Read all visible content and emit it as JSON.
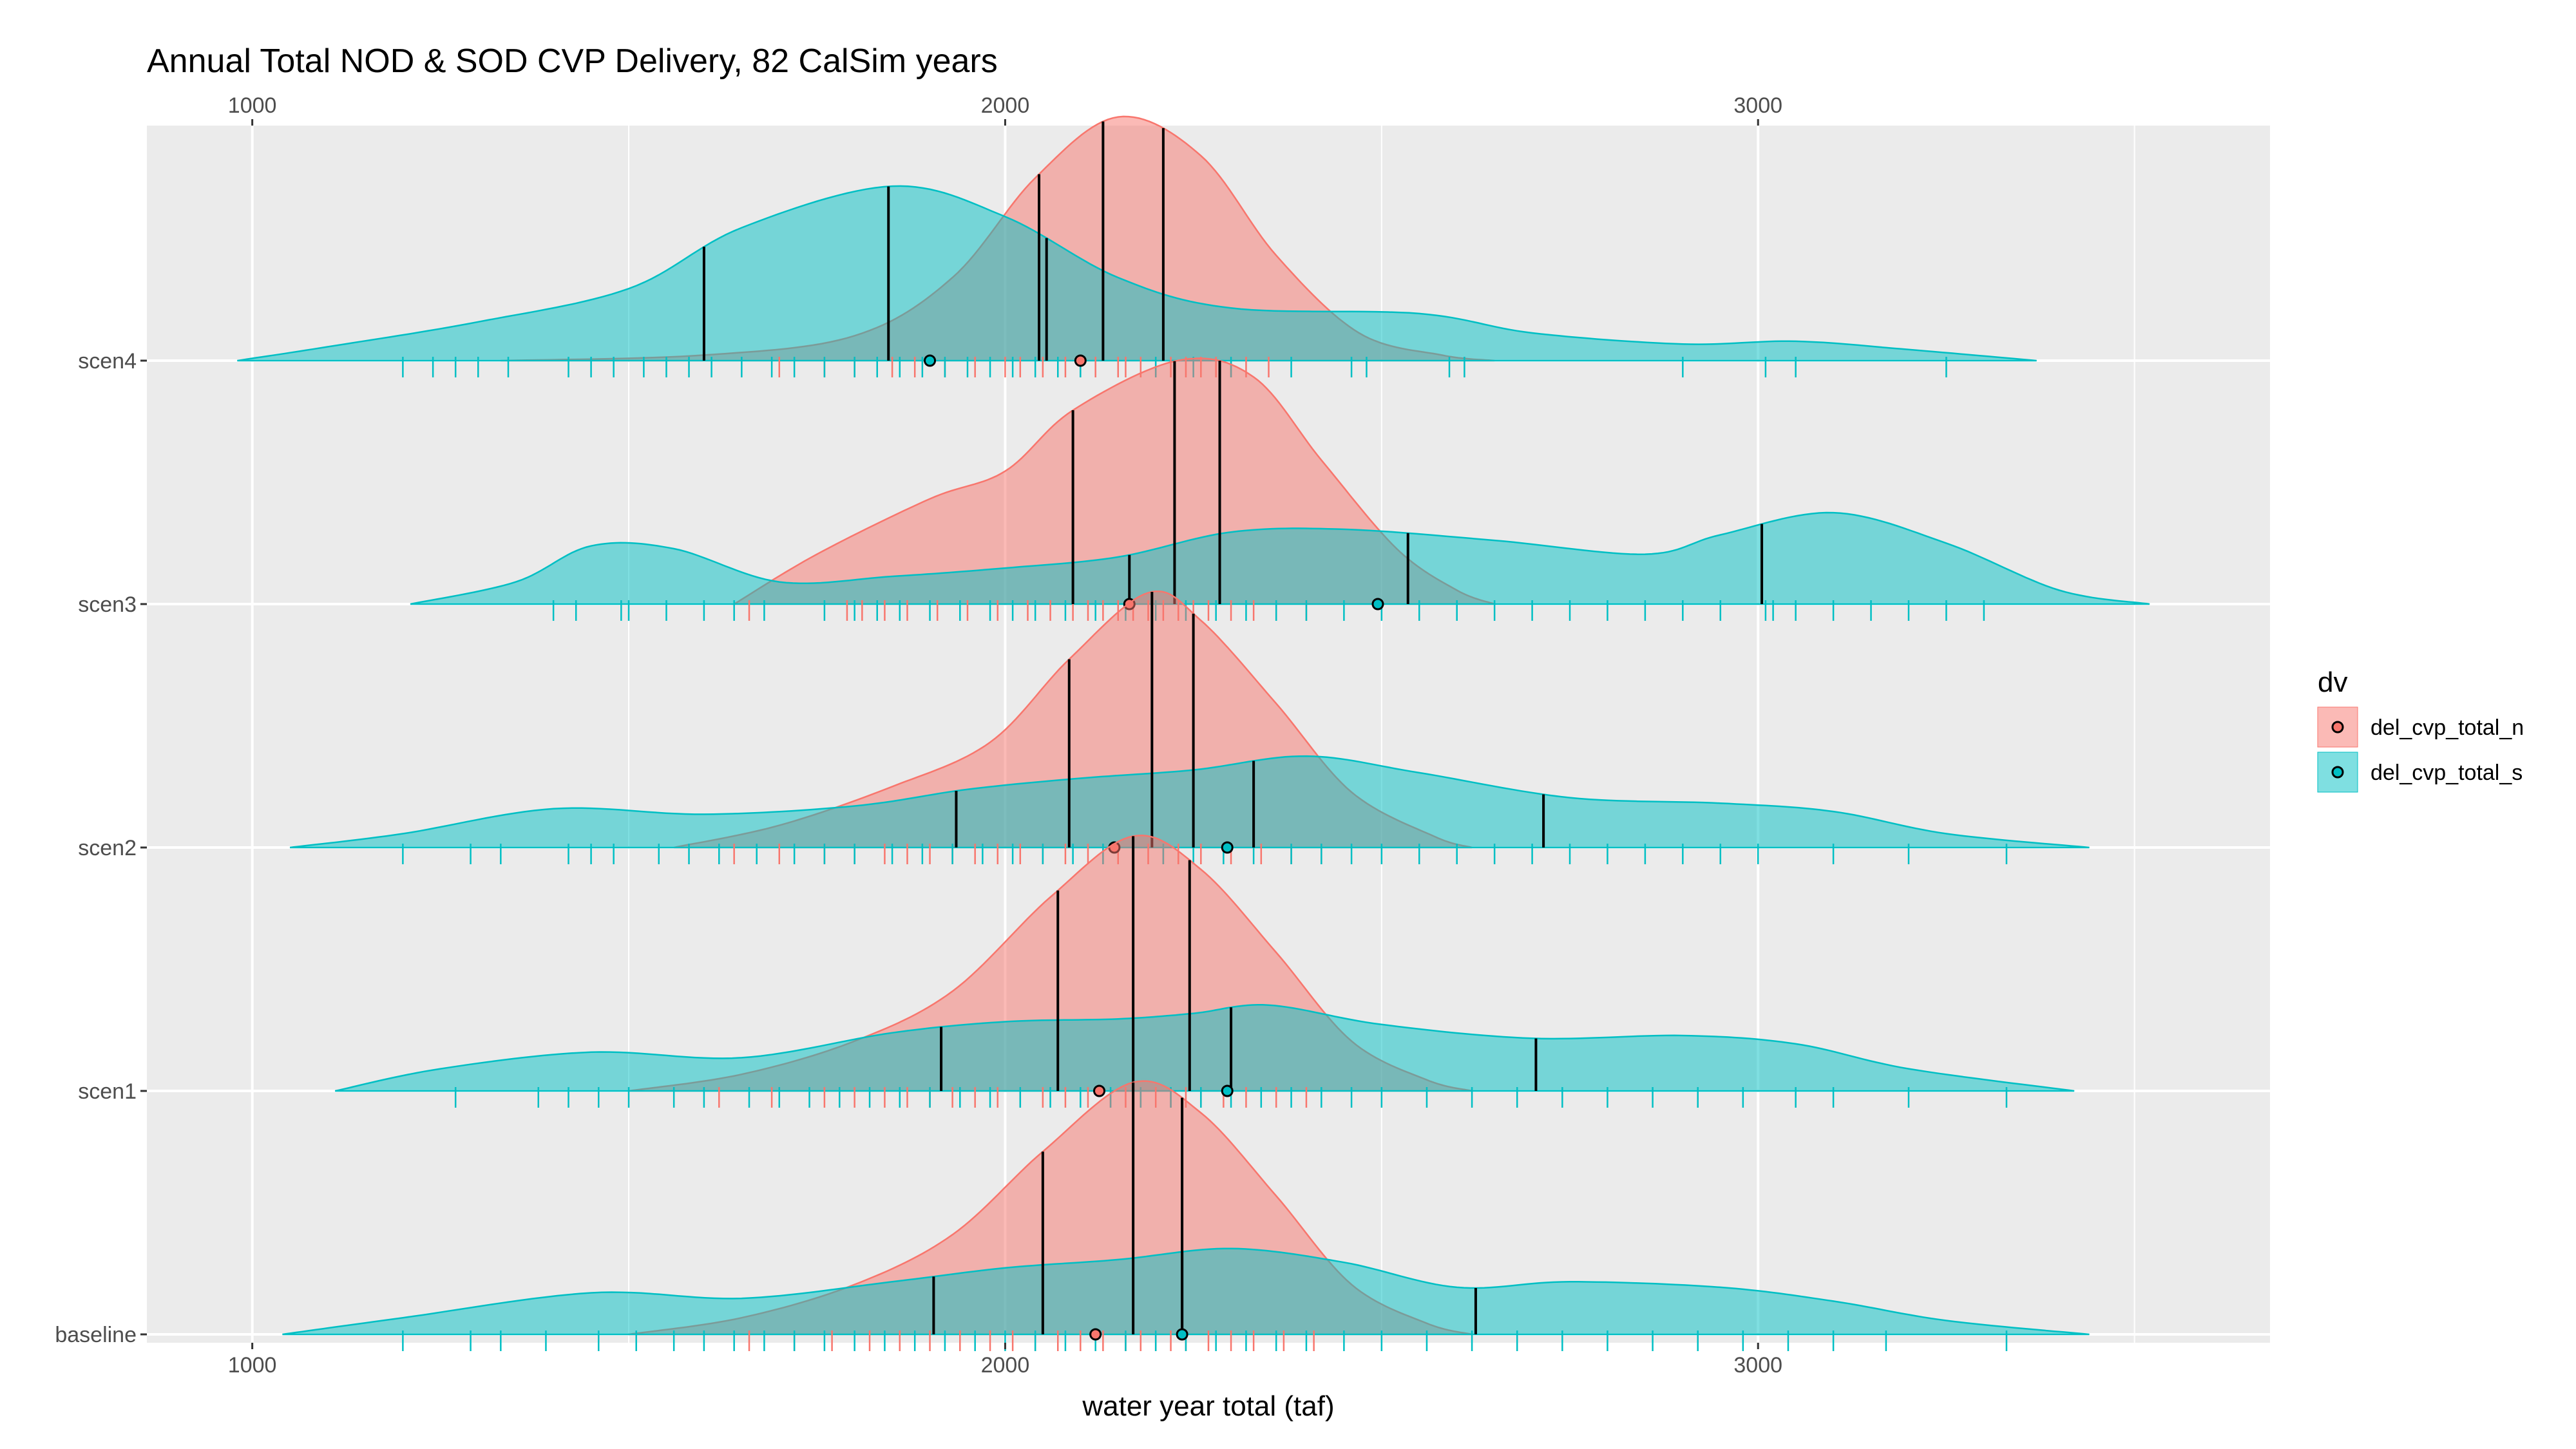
{
  "chart_data": {
    "type": "ridgeline-density",
    "title": "Annual Total NOD & SOD CVP Delivery, 82 CalSim years",
    "xlabel": "water year total (taf)",
    "xlim": [
      860,
      3680
    ],
    "x_ticks": [
      1000,
      2000,
      3000
    ],
    "x_tick_labels": [
      "1000",
      "2000",
      "3000"
    ],
    "categories": [
      "scen4",
      "scen3",
      "scen2",
      "scen1",
      "baseline"
    ],
    "legend": {
      "title": "dv",
      "position": "right"
    },
    "series": [
      {
        "name": "del_cvp_total_n",
        "color": "#F8766D",
        "fill": "#F8766D"
      },
      {
        "name": "del_cvp_total_s",
        "color": "#00BFC4",
        "fill": "#00BFC4"
      }
    ],
    "ridges": [
      {
        "category": "scen4",
        "n": {
          "peak": [
            2150,
            0.88
          ],
          "ctrl": [
            [
              1330,
              0
            ],
            [
              1600,
              0.02
            ],
            [
              1800,
              0.09
            ],
            [
              1930,
              0.3
            ],
            [
              2040,
              0.66
            ],
            [
              2150,
              0.88
            ],
            [
              2260,
              0.74
            ],
            [
              2360,
              0.38
            ],
            [
              2470,
              0.1
            ],
            [
              2580,
              0.02
            ],
            [
              2650,
              0
            ]
          ],
          "quantiles": [
            2045,
            2130,
            2210
          ],
          "mean": 2100,
          "rug": [
            1700,
            1760,
            1800,
            1850,
            1880,
            1920,
            1960,
            2000,
            2020,
            2050,
            2080,
            2100,
            2120,
            2150,
            2160,
            2180,
            2200,
            2220,
            2240,
            2260,
            2280,
            2300,
            2320,
            2350
          ]
        },
        "s": {
          "ctrl": [
            [
              980,
              0
            ],
            [
              1100,
              0.05
            ],
            [
              1300,
              0.14
            ],
            [
              1500,
              0.26
            ],
            [
              1650,
              0.48
            ],
            [
              1850,
              0.63
            ],
            [
              2000,
              0.52
            ],
            [
              2150,
              0.3
            ],
            [
              2300,
              0.19
            ],
            [
              2550,
              0.17
            ],
            [
              2700,
              0.1
            ],
            [
              2900,
              0.06
            ],
            [
              3050,
              0.07
            ],
            [
              3200,
              0.04
            ],
            [
              3370,
              0
            ]
          ],
          "quantiles": [
            1600,
            1845,
            2055
          ],
          "mean": 1900,
          "rug": [
            1200,
            1240,
            1270,
            1300,
            1340,
            1420,
            1450,
            1480,
            1520,
            1550,
            1580,
            1610,
            1650,
            1690,
            1720,
            1760,
            1800,
            1830,
            1860,
            1890,
            1920,
            1950,
            1980,
            2010,
            2040,
            2070,
            2100,
            2200,
            2250,
            2300,
            2380,
            2460,
            2480,
            2590,
            2610,
            2900,
            3010,
            3050,
            3250
          ]
        }
      },
      {
        "category": "scen3",
        "n": {
          "peak": [
            2230,
            0.88
          ],
          "ctrl": [
            [
              1640,
              0
            ],
            [
              1750,
              0.18
            ],
            [
              1900,
              0.38
            ],
            [
              2000,
              0.48
            ],
            [
              2090,
              0.7
            ],
            [
              2230,
              0.88
            ],
            [
              2330,
              0.82
            ],
            [
              2420,
              0.52
            ],
            [
              2520,
              0.2
            ],
            [
              2600,
              0.05
            ],
            [
              2650,
              0
            ]
          ],
          "quantiles": [
            2090,
            2225,
            2285
          ],
          "mean": 2165,
          "rug": [
            1660,
            1790,
            1810,
            1840,
            1870,
            1910,
            1950,
            1990,
            2030,
            2060,
            2090,
            2110,
            2130,
            2150,
            2170,
            2190,
            2210,
            2230,
            2250,
            2270,
            2300,
            2330,
            2360,
            2400
          ]
        },
        "s": {
          "ctrl": [
            [
              1210,
              0
            ],
            [
              1350,
              0.08
            ],
            [
              1450,
              0.21
            ],
            [
              1560,
              0.2
            ],
            [
              1700,
              0.08
            ],
            [
              1850,
              0.1
            ],
            [
              2000,
              0.13
            ],
            [
              2150,
              0.17
            ],
            [
              2300,
              0.26
            ],
            [
              2450,
              0.27
            ],
            [
              2650,
              0.23
            ],
            [
              2850,
              0.18
            ],
            [
              2950,
              0.25
            ],
            [
              3100,
              0.33
            ],
            [
              3250,
              0.22
            ],
            [
              3400,
              0.05
            ],
            [
              3520,
              0
            ]
          ],
          "quantiles": [
            2165,
            2535,
            3005
          ],
          "mean": 2495,
          "rug": [
            1400,
            1430,
            1490,
            1500,
            1550,
            1600,
            1640,
            1680,
            1760,
            1800,
            1830,
            1860,
            1900,
            1940,
            1980,
            2010,
            2040,
            2080,
            2120,
            2160,
            2200,
            2240,
            2280,
            2320,
            2360,
            2400,
            2450,
            2500,
            2550,
            2600,
            2650,
            2700,
            2750,
            2800,
            2850,
            2900,
            2950,
            3010,
            3020,
            3050,
            3100,
            3150,
            3200,
            3250,
            3300
          ]
        }
      },
      {
        "category": "scen2",
        "n": {
          "peak": [
            2190,
            0.92
          ],
          "ctrl": [
            [
              1560,
              0
            ],
            [
              1700,
              0.08
            ],
            [
              1850,
              0.22
            ],
            [
              1980,
              0.38
            ],
            [
              2085,
              0.68
            ],
            [
              2190,
              0.92
            ],
            [
              2260,
              0.82
            ],
            [
              2360,
              0.52
            ],
            [
              2460,
              0.2
            ],
            [
              2570,
              0.04
            ],
            [
              2620,
              0
            ]
          ],
          "quantiles": [
            2085,
            2195,
            2250
          ],
          "mean": 2145,
          "rug": [
            1640,
            1700,
            1760,
            1800,
            1840,
            1870,
            1900,
            1930,
            1960,
            1990,
            2020,
            2050,
            2080,
            2110,
            2130,
            2150,
            2170,
            2190,
            2210,
            2230,
            2260,
            2300,
            2340,
            2380,
            2420
          ]
        },
        "s": {
          "ctrl": [
            [
              1050,
              0
            ],
            [
              1200,
              0.05
            ],
            [
              1400,
              0.14
            ],
            [
              1600,
              0.12
            ],
            [
              1800,
              0.15
            ],
            [
              1950,
              0.21
            ],
            [
              2100,
              0.25
            ],
            [
              2250,
              0.28
            ],
            [
              2400,
              0.33
            ],
            [
              2550,
              0.27
            ],
            [
              2750,
              0.18
            ],
            [
              2950,
              0.16
            ],
            [
              3100,
              0.13
            ],
            [
              3250,
              0.05
            ],
            [
              3440,
              0
            ]
          ],
          "quantiles": [
            1935,
            2330,
            2715
          ],
          "mean": 2295,
          "rug": [
            1200,
            1290,
            1330,
            1420,
            1450,
            1480,
            1540,
            1580,
            1620,
            1670,
            1720,
            1760,
            1800,
            1850,
            1890,
            1930,
            1970,
            2010,
            2050,
            2090,
            2130,
            2170,
            2210,
            2250,
            2290,
            2330,
            2380,
            2420,
            2460,
            2500,
            2550,
            2600,
            2650,
            2700,
            2750,
            2800,
            2850,
            2900,
            2950,
            3000,
            3100,
            3200,
            3330
          ]
        }
      },
      {
        "category": "scen1",
        "n": {
          "peak": [
            2170,
            0.92
          ],
          "ctrl": [
            [
              1500,
              0
            ],
            [
              1650,
              0.06
            ],
            [
              1800,
              0.18
            ],
            [
              1930,
              0.36
            ],
            [
              2060,
              0.7
            ],
            [
              2170,
              0.92
            ],
            [
              2260,
              0.8
            ],
            [
              2360,
              0.5
            ],
            [
              2460,
              0.18
            ],
            [
              2560,
              0.04
            ],
            [
              2620,
              0
            ]
          ],
          "quantiles": [
            2070,
            2170,
            2245
          ],
          "mean": 2125,
          "rug": [
            1620,
            1690,
            1760,
            1800,
            1840,
            1870,
            1900,
            1930,
            1960,
            1990,
            2020,
            2050,
            2080,
            2110,
            2140,
            2160,
            2180,
            2200,
            2220,
            2240,
            2260,
            2290,
            2320,
            2360,
            2400
          ]
        },
        "s": {
          "ctrl": [
            [
              1110,
              0
            ],
            [
              1250,
              0.08
            ],
            [
              1450,
              0.14
            ],
            [
              1650,
              0.12
            ],
            [
              1850,
              0.21
            ],
            [
              2000,
              0.25
            ],
            [
              2150,
              0.26
            ],
            [
              2250,
              0.28
            ],
            [
              2350,
              0.31
            ],
            [
              2500,
              0.24
            ],
            [
              2700,
              0.19
            ],
            [
              2900,
              0.2
            ],
            [
              3050,
              0.17
            ],
            [
              3200,
              0.08
            ],
            [
              3420,
              0
            ]
          ],
          "quantiles": [
            1915,
            2300,
            2705
          ],
          "mean": 2295,
          "rug": [
            1270,
            1380,
            1420,
            1460,
            1500,
            1560,
            1600,
            1660,
            1700,
            1740,
            1780,
            1820,
            1860,
            1900,
            1940,
            1980,
            2020,
            2060,
            2100,
            2140,
            2180,
            2220,
            2260,
            2300,
            2340,
            2380,
            2420,
            2460,
            2500,
            2560,
            2620,
            2680,
            2740,
            2800,
            2860,
            2920,
            2980,
            3050,
            3100,
            3200,
            3330
          ]
        }
      },
      {
        "category": "baseline",
        "n": {
          "peak": [
            2170,
            0.91
          ],
          "ctrl": [
            [
              1500,
              0
            ],
            [
              1650,
              0.06
            ],
            [
              1800,
              0.18
            ],
            [
              1930,
              0.36
            ],
            [
              2050,
              0.66
            ],
            [
              2170,
              0.91
            ],
            [
              2260,
              0.8
            ],
            [
              2360,
              0.5
            ],
            [
              2460,
              0.18
            ],
            [
              2560,
              0.04
            ],
            [
              2620,
              0
            ]
          ],
          "quantiles": [
            2050,
            2170,
            2235
          ],
          "mean": 2120,
          "rug": [
            1660,
            1720,
            1770,
            1820,
            1860,
            1900,
            1940,
            1980,
            2010,
            2040,
            2070,
            2100,
            2130,
            2160,
            2180,
            2200,
            2220,
            2240,
            2270,
            2300,
            2330,
            2370,
            2410
          ]
        },
        "s": {
          "ctrl": [
            [
              1040,
              0
            ],
            [
              1200,
              0.06
            ],
            [
              1450,
              0.15
            ],
            [
              1650,
              0.13
            ],
            [
              1850,
              0.19
            ],
            [
              2000,
              0.24
            ],
            [
              2150,
              0.27
            ],
            [
              2300,
              0.31
            ],
            [
              2450,
              0.26
            ],
            [
              2600,
              0.17
            ],
            [
              2750,
              0.19
            ],
            [
              2950,
              0.17
            ],
            [
              3100,
              0.12
            ],
            [
              3250,
              0.05
            ],
            [
              3440,
              0
            ]
          ],
          "quantiles": [
            1905,
            2235,
            2625
          ],
          "mean": 2235,
          "rug": [
            1200,
            1290,
            1330,
            1390,
            1460,
            1510,
            1560,
            1600,
            1640,
            1680,
            1720,
            1760,
            1800,
            1840,
            1880,
            1920,
            1960,
            2000,
            2040,
            2080,
            2120,
            2160,
            2200,
            2240,
            2280,
            2320,
            2360,
            2400,
            2450,
            2500,
            2560,
            2620,
            2680,
            2740,
            2800,
            2860,
            2920,
            2980,
            3040,
            3100,
            3170,
            3330
          ]
        }
      }
    ]
  }
}
